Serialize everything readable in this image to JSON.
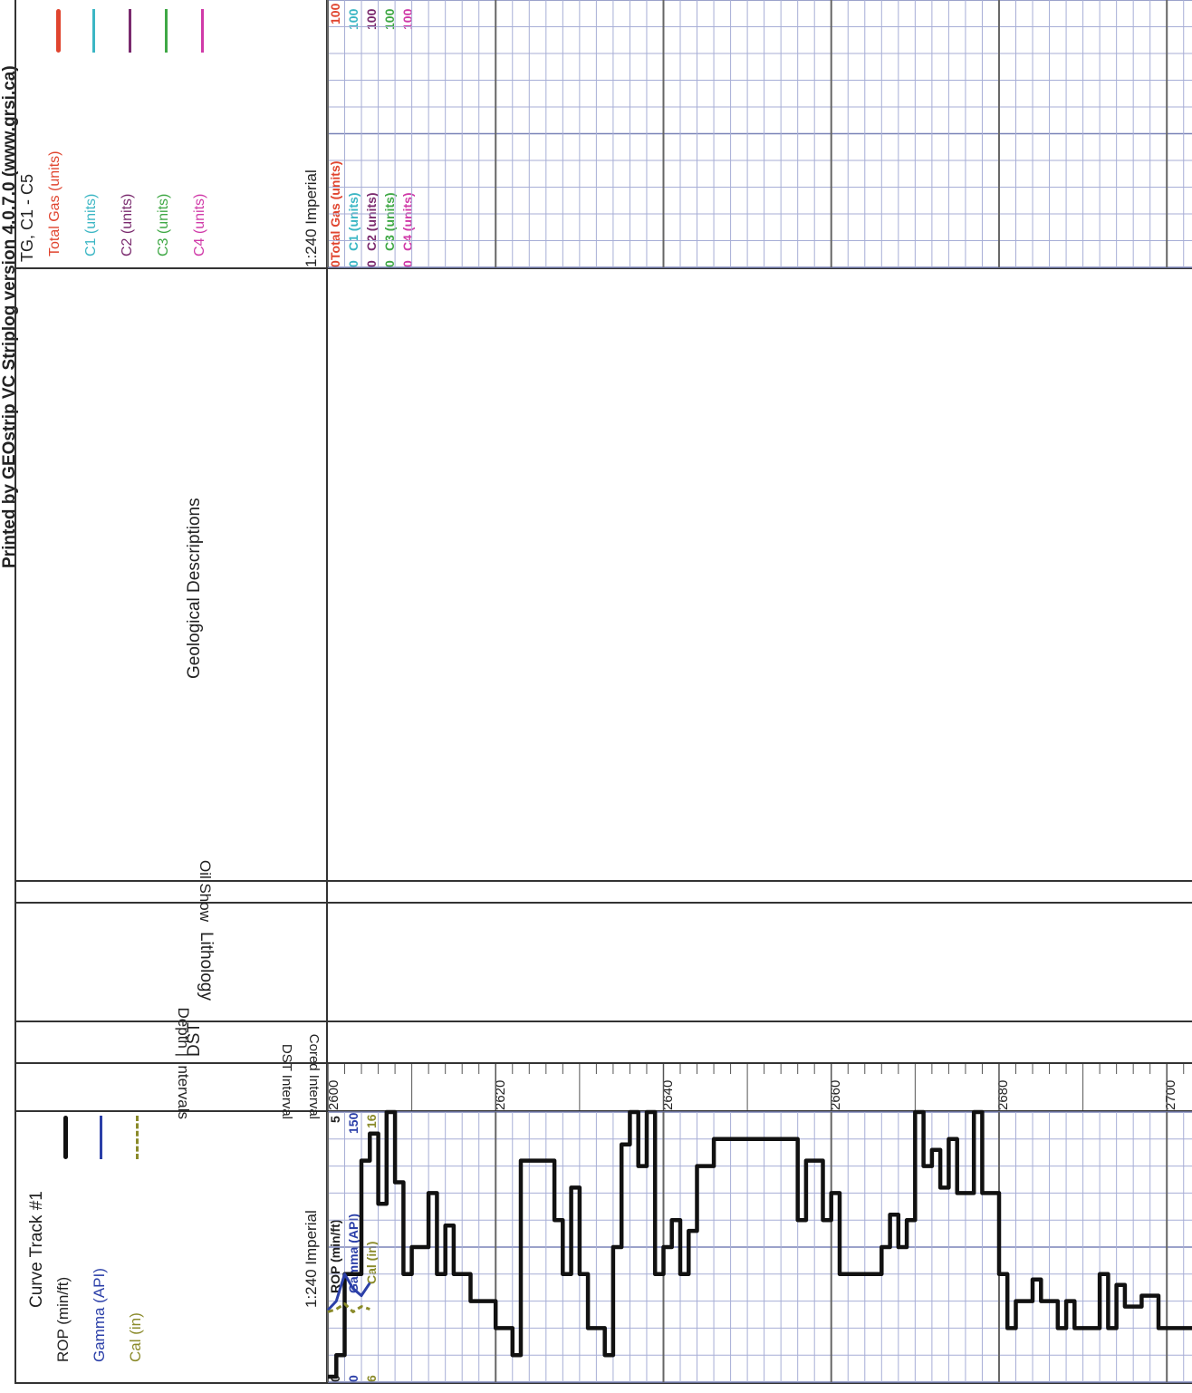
{
  "header": {
    "printed_by": "Printed by GEOstrip VC Striplog version 4.0.7.0 (www.grsi.ca)"
  },
  "tracks": {
    "curve_track": {
      "title": "Curve Track #1",
      "legend": [
        {
          "label": "ROP (min/ft)",
          "color": "#111111",
          "style": "solid"
        },
        {
          "label": "Gamma (API)",
          "color": "#2b3fa8",
          "style": "solid"
        },
        {
          "label": "Cal (in)",
          "color": "#8a8a2a",
          "style": "dashed"
        }
      ],
      "scale": "1:240 Imperial",
      "scale_labels": [
        {
          "name": "ROP (min/ft)",
          "min": "0",
          "max": "5",
          "color": "#111111"
        },
        {
          "name": "Gamma (API)",
          "min": "0",
          "max": "150",
          "color": "#2b3fa8"
        },
        {
          "name": "Cal (in)",
          "min": "6",
          "max": "16",
          "color": "#8a8a2a"
        }
      ]
    },
    "depth_track": {
      "title": "Depth | Intervals",
      "sub_labels": [
        "Cored Interval",
        "DST Interval"
      ]
    },
    "dst_track": {
      "title": "DST"
    },
    "lithology_track": {
      "title": "Lithology"
    },
    "oil_show_track": {
      "title": "Oil Show"
    },
    "geo_desc_track": {
      "title": "Geological Descriptions"
    },
    "gas_track": {
      "title": "TG, C1 - C5",
      "legend": [
        {
          "label": "Total Gas (units)",
          "color": "#e0452f"
        },
        {
          "label": "C1 (units)",
          "color": "#3bb6c4"
        },
        {
          "label": "C2 (units)",
          "color": "#7a2a6e"
        },
        {
          "label": "C3 (units)",
          "color": "#3fa845"
        },
        {
          "label": "C4 (units)",
          "color": "#d03aa8"
        }
      ],
      "scale": "1:240 Imperial",
      "scale_labels": [
        {
          "name": "Total Gas (units)",
          "min": "0",
          "max": "100",
          "color": "#e0452f"
        },
        {
          "name": "C1 (units)",
          "min": "0",
          "max": "100",
          "color": "#3bb6c4"
        },
        {
          "name": "C2 (units)",
          "min": "0",
          "max": "100",
          "color": "#7a2a6e"
        },
        {
          "name": "C3 (units)",
          "min": "0",
          "max": "100",
          "color": "#3fa845"
        },
        {
          "name": "C4 (units)",
          "min": "0",
          "max": "100",
          "color": "#d03aa8"
        }
      ]
    }
  },
  "depth_ticks": [
    "2600",
    "2620",
    "2640",
    "2660",
    "2680",
    "2700"
  ],
  "chart_data": {
    "type": "line",
    "xlabel": "ROP (min/ft)",
    "ylabel": "",
    "xlim": [
      0,
      5
    ],
    "depth_range": [
      2600,
      2703
    ],
    "grid": true,
    "series": [
      {
        "name": "ROP (min/ft)",
        "color": "#111111",
        "points": [
          [
            0.1,
            2600
          ],
          [
            0.1,
            2601
          ],
          [
            0.5,
            2601
          ],
          [
            0.5,
            2602
          ],
          [
            2.0,
            2602
          ],
          [
            2.0,
            2604
          ],
          [
            4.1,
            2604
          ],
          [
            4.1,
            2605
          ],
          [
            4.6,
            2605
          ],
          [
            4.6,
            2606
          ],
          [
            3.3,
            2606
          ],
          [
            3.3,
            2607
          ],
          [
            5.0,
            2607
          ],
          [
            5.0,
            2608
          ],
          [
            3.7,
            2608
          ],
          [
            3.7,
            2609
          ],
          [
            2.0,
            2609
          ],
          [
            2.0,
            2610
          ],
          [
            2.5,
            2610
          ],
          [
            2.5,
            2612
          ],
          [
            3.5,
            2612
          ],
          [
            3.5,
            2613
          ],
          [
            2.0,
            2613
          ],
          [
            2.0,
            2614
          ],
          [
            2.9,
            2614
          ],
          [
            2.9,
            2615
          ],
          [
            2.0,
            2615
          ],
          [
            2.0,
            2617
          ],
          [
            1.5,
            2617
          ],
          [
            1.5,
            2620
          ],
          [
            1.0,
            2620
          ],
          [
            1.0,
            2622
          ],
          [
            0.5,
            2622
          ],
          [
            0.5,
            2623
          ],
          [
            4.1,
            2623
          ],
          [
            4.1,
            2627
          ],
          [
            3.0,
            2627
          ],
          [
            3.0,
            2628
          ],
          [
            2.0,
            2628
          ],
          [
            2.0,
            2629
          ],
          [
            3.6,
            2629
          ],
          [
            3.6,
            2630
          ],
          [
            2.0,
            2630
          ],
          [
            2.0,
            2631
          ],
          [
            1.0,
            2631
          ],
          [
            1.0,
            2633
          ],
          [
            0.5,
            2633
          ],
          [
            0.5,
            2634
          ],
          [
            2.5,
            2634
          ],
          [
            2.5,
            2635
          ],
          [
            4.4,
            2635
          ],
          [
            4.4,
            2636
          ],
          [
            5.0,
            2636
          ],
          [
            5.0,
            2637
          ],
          [
            4.0,
            2637
          ],
          [
            4.0,
            2638
          ],
          [
            5.0,
            2638
          ],
          [
            5.0,
            2639
          ],
          [
            2.0,
            2639
          ],
          [
            2.0,
            2640
          ],
          [
            2.5,
            2640
          ],
          [
            2.5,
            2641
          ],
          [
            3.0,
            2641
          ],
          [
            3.0,
            2642
          ],
          [
            2.0,
            2642
          ],
          [
            2.0,
            2643
          ],
          [
            2.8,
            2643
          ],
          [
            2.8,
            2644
          ],
          [
            4.0,
            2644
          ],
          [
            4.0,
            2646
          ],
          [
            4.5,
            2646
          ],
          [
            4.5,
            2656
          ],
          [
            3.0,
            2656
          ],
          [
            3.0,
            2657
          ],
          [
            4.1,
            2657
          ],
          [
            4.1,
            2659
          ],
          [
            3.0,
            2659
          ],
          [
            3.0,
            2660
          ],
          [
            3.5,
            2660
          ],
          [
            3.5,
            2661
          ],
          [
            2.0,
            2661
          ],
          [
            2.0,
            2664
          ],
          [
            2.0,
            2665
          ],
          [
            2.0,
            2666
          ],
          [
            2.5,
            2666
          ],
          [
            2.5,
            2667
          ],
          [
            3.1,
            2667
          ],
          [
            3.1,
            2668
          ],
          [
            2.5,
            2668
          ],
          [
            2.5,
            2669
          ],
          [
            3.0,
            2669
          ],
          [
            3.0,
            2670
          ],
          [
            5.0,
            2670
          ],
          [
            5.0,
            2671
          ],
          [
            4.0,
            2671
          ],
          [
            4.0,
            2672
          ],
          [
            4.3,
            2672
          ],
          [
            4.3,
            2673
          ],
          [
            3.6,
            2673
          ],
          [
            3.6,
            2674
          ],
          [
            4.5,
            2674
          ],
          [
            4.5,
            2675
          ],
          [
            3.5,
            2675
          ],
          [
            3.5,
            2677
          ],
          [
            5.0,
            2677
          ],
          [
            5.0,
            2678
          ],
          [
            3.5,
            2678
          ],
          [
            3.5,
            2680
          ],
          [
            2.0,
            2680
          ],
          [
            2.0,
            2681
          ],
          [
            1.0,
            2681
          ],
          [
            1.0,
            2682
          ],
          [
            1.5,
            2682
          ],
          [
            1.5,
            2684
          ],
          [
            1.9,
            2684
          ],
          [
            1.9,
            2685
          ],
          [
            1.5,
            2685
          ],
          [
            1.5,
            2687
          ],
          [
            1.0,
            2687
          ],
          [
            1.0,
            2688
          ],
          [
            1.5,
            2688
          ],
          [
            1.5,
            2689
          ],
          [
            1.0,
            2689
          ],
          [
            1.0,
            2692
          ],
          [
            2.0,
            2692
          ],
          [
            2.0,
            2693
          ],
          [
            1.0,
            2693
          ],
          [
            1.0,
            2694
          ],
          [
            1.8,
            2694
          ],
          [
            1.8,
            2695
          ],
          [
            1.4,
            2695
          ],
          [
            1.4,
            2697
          ],
          [
            1.6,
            2697
          ],
          [
            1.6,
            2699
          ],
          [
            1.0,
            2699
          ],
          [
            1.0,
            2703
          ]
        ]
      },
      {
        "name": "Gamma (API)",
        "color": "#2b3fa8",
        "points": [
          [
            40,
            2600
          ],
          [
            45,
            2601
          ],
          [
            60,
            2602
          ],
          [
            52,
            2603
          ],
          [
            48,
            2604
          ],
          [
            55,
            2605
          ]
        ]
      },
      {
        "name": "Cal (in)",
        "color": "#8a8a2a",
        "points": [
          [
            8.6,
            2600
          ],
          [
            8.7,
            2601
          ],
          [
            8.9,
            2602
          ],
          [
            8.6,
            2603
          ],
          [
            8.8,
            2604
          ],
          [
            8.7,
            2605
          ]
        ]
      }
    ]
  }
}
